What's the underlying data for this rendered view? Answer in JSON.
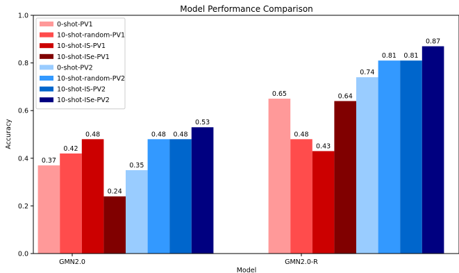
{
  "chart_data": {
    "type": "bar",
    "title": "Model Performance Comparison",
    "xlabel": "Model",
    "ylabel": "Accuracy",
    "ylim": [
      0.0,
      1.0
    ],
    "yticks": [
      "0.0",
      "0.2",
      "0.4",
      "0.6",
      "0.8",
      "1.0"
    ],
    "categories": [
      "GMN2.0",
      "GMN2.0-R"
    ],
    "legend_position": "top-left",
    "grid": false,
    "series": [
      {
        "name": "0-shot-PV1",
        "color": "#ff9999",
        "values": [
          0.37,
          0.65
        ],
        "labels": [
          "0.37",
          "0.65"
        ]
      },
      {
        "name": "10-shot-random-PV1",
        "color": "#ff4c4c",
        "values": [
          0.42,
          0.48
        ],
        "labels": [
          "0.42",
          "0.48"
        ]
      },
      {
        "name": "10-shot-IS-PV1",
        "color": "#cc0000",
        "values": [
          0.48,
          0.43
        ],
        "labels": [
          "0.48",
          "0.43"
        ]
      },
      {
        "name": "10-shot-ISe-PV1",
        "color": "#800000",
        "values": [
          0.24,
          0.64
        ],
        "labels": [
          "0.24",
          "0.64"
        ]
      },
      {
        "name": "0-shot-PV2",
        "color": "#99ccff",
        "values": [
          0.35,
          0.74
        ],
        "labels": [
          "0.35",
          "0.74"
        ]
      },
      {
        "name": "10-shot-random-PV2",
        "color": "#3399ff",
        "values": [
          0.48,
          0.81
        ],
        "labels": [
          "0.48",
          "0.81"
        ]
      },
      {
        "name": "10-shot-IS-PV2",
        "color": "#0066cc",
        "values": [
          0.48,
          0.81
        ],
        "labels": [
          "0.48",
          "0.81"
        ]
      },
      {
        "name": "10-shot-ISe-PV2",
        "color": "#000080",
        "values": [
          0.53,
          0.87
        ],
        "labels": [
          "0.53",
          "0.87"
        ]
      }
    ]
  }
}
